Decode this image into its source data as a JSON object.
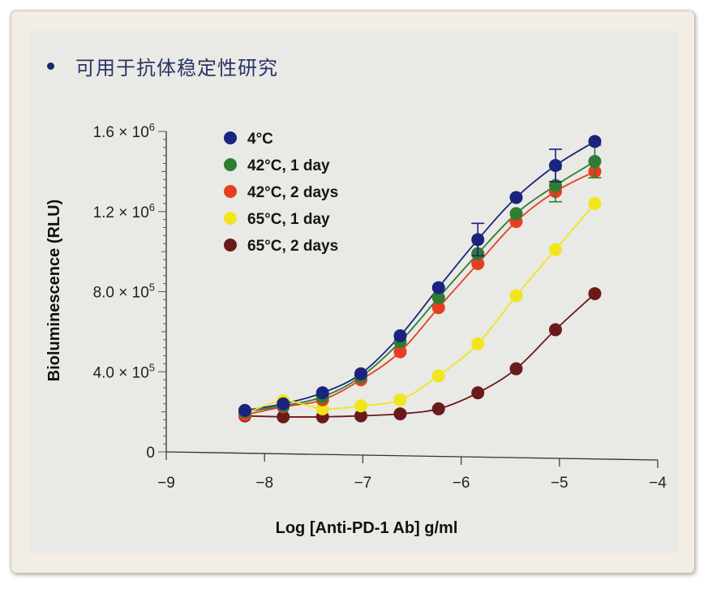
{
  "slide": {
    "bullet_text": "可用于抗体稳定性研究"
  },
  "chart_data": {
    "type": "scatter",
    "title": "",
    "xlabel": "Log [Anti-PD-1 Ab] g/ml",
    "ylabel": "Bioluminescence (RLU)",
    "xlim": [
      -9,
      -4
    ],
    "ylim": [
      0,
      1600000
    ],
    "x_ticks": [
      "−9",
      "−8",
      "−7",
      "−6",
      "−5",
      "−4"
    ],
    "y_ticks": [
      {
        "base": "0",
        "exp": ""
      },
      {
        "base": "4.0 × 10",
        "exp": "5"
      },
      {
        "base": "8.0 × 10",
        "exp": "5"
      },
      {
        "base": "1.2 × 10",
        "exp": "6"
      },
      {
        "base": "1.6 × 10",
        "exp": "6"
      }
    ],
    "grid": false,
    "legend_position": "upper-left",
    "fit": "sigmoidal dose-response curves",
    "x": [
      -8.2,
      -7.81,
      -7.41,
      -7.02,
      -6.62,
      -6.23,
      -5.83,
      -5.44,
      -5.04,
      -4.64
    ],
    "series": [
      {
        "name": "4°C",
        "color": "#1a237e",
        "values": [
          207000,
          240000,
          295000,
          390000,
          580000,
          820000,
          1060000,
          1270000,
          1430000,
          1550000
        ],
        "error_bars_at": [
          -5.83,
          -5.04
        ]
      },
      {
        "name": "42°C, 1 day",
        "color": "#2e7d32",
        "values": [
          200000,
          230000,
          275000,
          375000,
          550000,
          770000,
          990000,
          1190000,
          1330000,
          1450000
        ],
        "error_bars_at": [
          -5.04,
          -4.64
        ]
      },
      {
        "name": "42°C, 2 days",
        "color": "#e53f1f",
        "values": [
          185000,
          225000,
          260000,
          360000,
          500000,
          720000,
          940000,
          1150000,
          1300000,
          1400000
        ]
      },
      {
        "name": "65°C, 1 day",
        "color": "#f1e51e",
        "values": [
          190000,
          255000,
          215000,
          230000,
          260000,
          380000,
          540000,
          780000,
          1010000,
          1240000
        ]
      },
      {
        "name": "65°C, 2 days",
        "color": "#6b1a1a",
        "values": [
          180000,
          175000,
          175000,
          180000,
          190000,
          215000,
          295000,
          415000,
          610000,
          790000
        ]
      }
    ]
  }
}
